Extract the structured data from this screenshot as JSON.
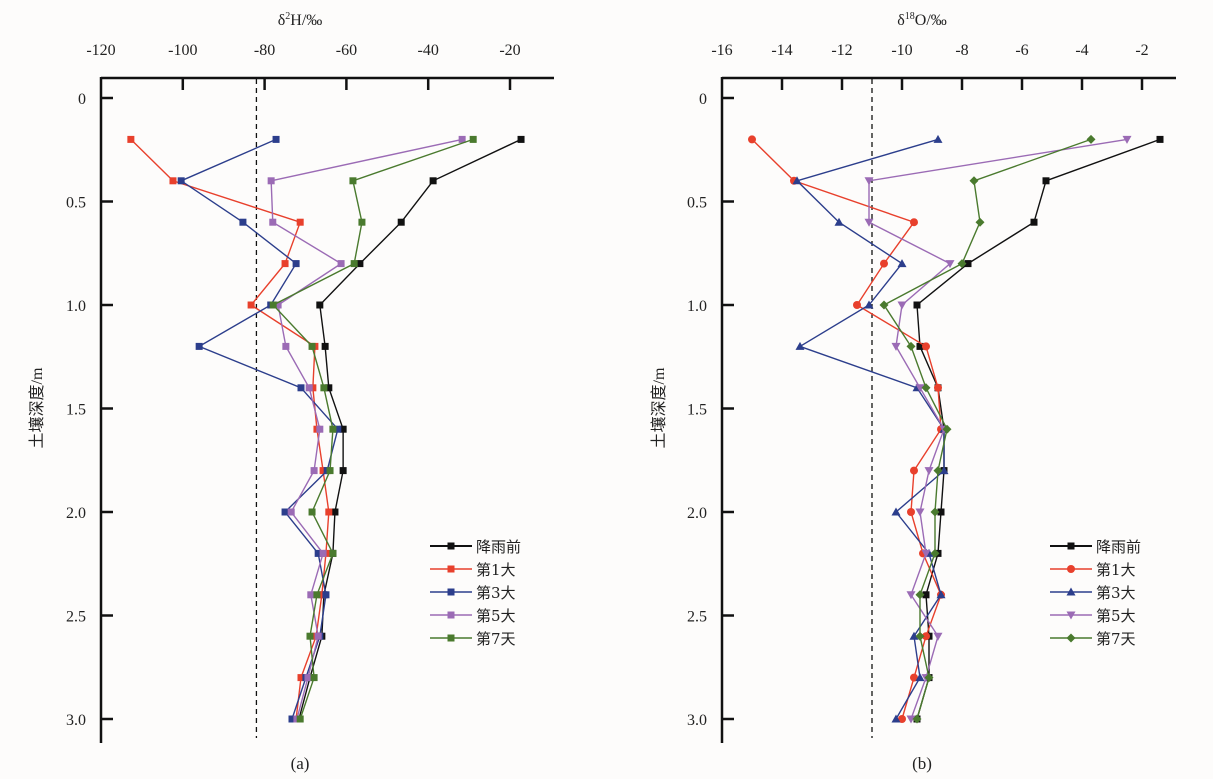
{
  "chart_data": [
    {
      "type": "line",
      "panel_label": "(a)",
      "xlabel_prefix": "δ",
      "xlabel_sup": "2",
      "xlabel_suffix": "H/‰",
      "ylabel": "土壤深度/m",
      "xlim": [
        -120,
        -10
      ],
      "ylim": [
        0,
        3.12
      ],
      "xticks": [
        -120,
        -100,
        -80,
        -60,
        -40,
        -20
      ],
      "yticks": [
        0,
        0.5,
        1.0,
        1.5,
        2.0,
        2.5,
        3.0
      ],
      "ytick_labels": [
        "0",
        "0.5",
        "1.0",
        "1.5",
        "2.0",
        "2.5",
        "3.0"
      ],
      "x_axis_position": "top",
      "y_inverted": true,
      "reference_line": {
        "x": -82,
        "style": "dashed"
      },
      "legend_position": "bottom-right",
      "depth": [
        0.2,
        0.4,
        0.6,
        0.8,
        1.0,
        1.2,
        1.4,
        1.6,
        1.8,
        2.0,
        2.2,
        2.4,
        2.6,
        2.8,
        3.0
      ],
      "series": [
        {
          "name": "降雨前",
          "color": "#111111",
          "marker": "square",
          "values": [
            -17.3,
            -38.8,
            -46.6,
            -56.7,
            -66.5,
            -65.2,
            -64.3,
            -60.8,
            -60.8,
            -62.8,
            -63.3,
            -65.5,
            -66.0,
            -68.9,
            -71.6
          ]
        },
        {
          "name": "第1大",
          "color": "#e8402c",
          "marker": "square",
          "values": [
            -112.7,
            -102.4,
            -71.3,
            -75.0,
            -83.3,
            -67.7,
            -68.2,
            -67.2,
            -65.7,
            -64.3,
            -65.0,
            -66.0,
            -67.4,
            -71.1,
            -72.3
          ]
        },
        {
          "name": "第3大",
          "color": "#2c3e8c",
          "marker": "square",
          "values": [
            -77.2,
            -100.4,
            -85.3,
            -72.3,
            -78.5,
            -96.0,
            -71.1,
            -62.1,
            -64.7,
            -75.0,
            -66.9,
            -65.0,
            -66.5,
            -69.9,
            -73.3
          ]
        },
        {
          "name": "第5大",
          "color": "#9b6bb5",
          "marker": "square",
          "values": [
            -31.7,
            -78.4,
            -78.0,
            -61.3,
            -76.7,
            -74.8,
            -69.1,
            -66.5,
            -67.9,
            -73.5,
            -65.7,
            -68.7,
            -66.9,
            -69.4,
            -72.1
          ]
        },
        {
          "name": "第7天",
          "color": "#4a7a2e",
          "marker": "square",
          "values": [
            -29.0,
            -58.4,
            -56.2,
            -58.1,
            -77.9,
            -68.4,
            -65.5,
            -63.3,
            -64.0,
            -68.4,
            -63.3,
            -67.2,
            -68.9,
            -67.9,
            -71.3
          ]
        }
      ]
    },
    {
      "type": "line",
      "panel_label": "(b)",
      "xlabel_prefix": "δ",
      "xlabel_sup": "18",
      "xlabel_suffix": "O/‰",
      "ylabel": "土壤深度/m",
      "xlim": [
        -16,
        -0.5
      ],
      "ylim": [
        0,
        3.12
      ],
      "xticks": [
        -16,
        -14,
        -12,
        -10,
        -8,
        -6,
        -4,
        -2
      ],
      "yticks": [
        0,
        0.5,
        1.0,
        1.5,
        2.0,
        2.5,
        3.0
      ],
      "ytick_labels": [
        "0",
        "0.5",
        "1.0",
        "1.5",
        "2.0",
        "2.5",
        "3.0"
      ],
      "x_axis_position": "top",
      "y_inverted": true,
      "reference_line": {
        "x": -11,
        "style": "dashed"
      },
      "legend_position": "bottom-right",
      "depth": [
        0.2,
        0.4,
        0.6,
        0.8,
        1.0,
        1.2,
        1.4,
        1.6,
        1.8,
        2.0,
        2.2,
        2.4,
        2.6,
        2.8,
        3.0
      ],
      "series": [
        {
          "name": "降雨前",
          "color": "#111111",
          "marker": "square",
          "values": [
            -1.4,
            -5.2,
            -5.6,
            -7.8,
            -9.5,
            -9.4,
            -8.8,
            -8.6,
            -8.6,
            -8.7,
            -8.8,
            -9.2,
            -9.1,
            -9.1,
            -9.5
          ]
        },
        {
          "name": "第1大",
          "color": "#e8402c",
          "marker": "circle",
          "values": [
            -15.0,
            -13.6,
            -9.6,
            -10.6,
            -11.5,
            -9.2,
            -8.8,
            -8.7,
            -9.6,
            -9.7,
            -9.3,
            -8.7,
            -9.2,
            -9.6,
            -10.0
          ]
        },
        {
          "name": "第3大",
          "color": "#2c3e8c",
          "marker": "triangle-up",
          "values": [
            -8.8,
            -13.5,
            -12.1,
            -10.0,
            -11.1,
            -13.4,
            -9.5,
            -8.6,
            -8.6,
            -10.2,
            -9.1,
            -8.7,
            -9.6,
            -9.4,
            -10.2
          ]
        },
        {
          "name": "第5大",
          "color": "#9b6bb5",
          "marker": "triangle-down",
          "values": [
            -2.5,
            -11.1,
            -11.1,
            -8.4,
            -10.0,
            -10.2,
            -9.4,
            -8.6,
            -9.1,
            -9.4,
            -9.2,
            -9.7,
            -8.8,
            -9.2,
            -9.7
          ]
        },
        {
          "name": "第7天",
          "color": "#4a7a2e",
          "marker": "diamond",
          "values": [
            -3.7,
            -7.6,
            -7.4,
            -8.0,
            -10.6,
            -9.7,
            -9.2,
            -8.5,
            -8.8,
            -8.9,
            -8.9,
            -9.4,
            -9.4,
            -9.1,
            -9.5
          ]
        }
      ]
    }
  ]
}
